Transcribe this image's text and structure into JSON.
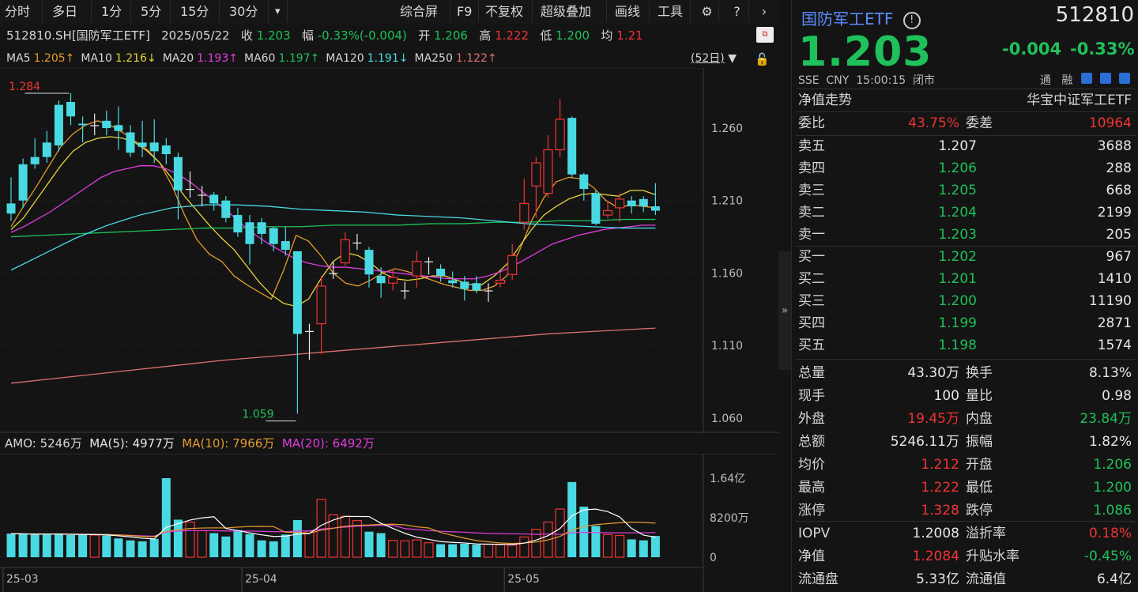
{
  "toolbar": {
    "left": [
      "分时",
      "多日",
      "1分",
      "5分",
      "15分",
      "30分"
    ],
    "dropdown": "▾",
    "right": [
      "综合屏",
      "F9",
      "不复权",
      "超级叠加",
      "画线",
      "工具"
    ]
  },
  "info": {
    "code": "512810.SH[国防军工ETF]",
    "date": "2025/05/22",
    "close_label": "收",
    "close": "1.203",
    "chg_label": "幅",
    "chg": "-0.33%(-0.004)",
    "open_label": "开",
    "open": "1.206",
    "high_label": "高",
    "high": "1.222",
    "low_label": "低",
    "low": "1.200",
    "avg_label": "均",
    "avg": "1.21"
  },
  "ma_line": {
    "items": [
      {
        "name": "MA5",
        "value": "1.205↑",
        "color": "#e59a2e"
      },
      {
        "name": "MA10",
        "value": "1.216↓",
        "color": "#e5d33a"
      },
      {
        "name": "MA20",
        "value": "1.193↑",
        "color": "#e23ce2"
      },
      {
        "name": "MA60",
        "value": "1.197↑",
        "color": "#1fc15a"
      },
      {
        "name": "MA120",
        "value": "1.191↓",
        "color": "#49d9e3"
      },
      {
        "name": "MA250",
        "value": "1.122↑",
        "color": "#e07070"
      }
    ],
    "period": "(52日)"
  },
  "price_axis": [
    "1.260",
    "1.210",
    "1.160",
    "1.110",
    "1.060"
  ],
  "chart_annot": {
    "max": "1.284",
    "min": "1.059"
  },
  "amo": {
    "label": "AMO: 5246万",
    "ma5": "MA(5): 4977万",
    "ma10": "MA(10): 7966万",
    "ma20": "MA(20): 6492万"
  },
  "vol_axis": [
    "1.64亿",
    "8200万",
    "0"
  ],
  "date_axis": [
    "25-03",
    "25-04",
    "25-05"
  ],
  "chart_data": {
    "type": "candlestick",
    "candles": [
      [
        1.208,
        1.201,
        1.226,
        1.196
      ],
      [
        1.235,
        1.21,
        1.239,
        1.205
      ],
      [
        1.24,
        1.235,
        1.253,
        1.232
      ],
      [
        1.25,
        1.24,
        1.258,
        1.236
      ],
      [
        1.276,
        1.248,
        1.279,
        1.244
      ],
      [
        1.278,
        1.268,
        1.284,
        1.262
      ],
      [
        1.263,
        1.262,
        1.268,
        1.25
      ],
      [
        1.262,
        1.262,
        1.27,
        1.255
      ],
      [
        1.265,
        1.26,
        1.272,
        1.255
      ],
      [
        1.262,
        1.258,
        1.275,
        1.245
      ],
      [
        1.257,
        1.243,
        1.262,
        1.24
      ],
      [
        1.25,
        1.247,
        1.265,
        1.24
      ],
      [
        1.25,
        1.244,
        1.266,
        1.236
      ],
      [
        1.248,
        1.242,
        1.253,
        1.235
      ],
      [
        1.24,
        1.217,
        1.243,
        1.197
      ],
      [
        1.218,
        1.218,
        1.23,
        1.212
      ],
      [
        1.214,
        1.214,
        1.22,
        1.206
      ],
      [
        1.214,
        1.208,
        1.216,
        1.203
      ],
      [
        1.21,
        1.198,
        1.213,
        1.195
      ],
      [
        1.2,
        1.188,
        1.205,
        1.185
      ],
      [
        1.195,
        1.18,
        1.2,
        1.166
      ],
      [
        1.195,
        1.187,
        1.198,
        1.18
      ],
      [
        1.191,
        1.18,
        1.192,
        1.175
      ],
      [
        1.182,
        1.176,
        1.192,
        1.172
      ],
      [
        1.175,
        1.118,
        1.175,
        1.063
      ],
      [
        1.12,
        1.12,
        1.125,
        1.1
      ],
      [
        1.125,
        1.151,
        1.158,
        1.104
      ],
      [
        1.16,
        1.16,
        1.168,
        1.156
      ],
      [
        1.167,
        1.183,
        1.188,
        1.165
      ],
      [
        1.181,
        1.181,
        1.187,
        1.176
      ],
      [
        1.176,
        1.159,
        1.178,
        1.15
      ],
      [
        1.158,
        1.153,
        1.164,
        1.143
      ],
      [
        1.153,
        1.157,
        1.162,
        1.148
      ],
      [
        1.148,
        1.148,
        1.154,
        1.142
      ],
      [
        1.158,
        1.168,
        1.175,
        1.15
      ],
      [
        1.168,
        1.168,
        1.171,
        1.159
      ],
      [
        1.163,
        1.158,
        1.166,
        1.154
      ],
      [
        1.155,
        1.153,
        1.161,
        1.15
      ],
      [
        1.154,
        1.149,
        1.158,
        1.141
      ],
      [
        1.153,
        1.148,
        1.158,
        1.146
      ],
      [
        1.148,
        1.148,
        1.153,
        1.14
      ],
      [
        1.153,
        1.155,
        1.161,
        1.15
      ],
      [
        1.159,
        1.172,
        1.18,
        1.155
      ],
      [
        1.195,
        1.208,
        1.225,
        1.19
      ],
      [
        1.22,
        1.236,
        1.24,
        1.198
      ],
      [
        1.215,
        1.245,
        1.255,
        1.212
      ],
      [
        1.245,
        1.266,
        1.28,
        1.24
      ],
      [
        1.267,
        1.228,
        1.268,
        1.226
      ],
      [
        1.228,
        1.218,
        1.229,
        1.21
      ],
      [
        1.215,
        1.194,
        1.217,
        1.193
      ],
      [
        1.2,
        1.203,
        1.21,
        1.198
      ],
      [
        1.205,
        1.211,
        1.215,
        1.195
      ],
      [
        1.21,
        1.206,
        1.213,
        1.201
      ],
      [
        1.211,
        1.206,
        1.213,
        1.202
      ],
      [
        1.206,
        1.203,
        1.222,
        1.2
      ]
    ],
    "volumes_wan": [
      4900,
      4800,
      4700,
      4900,
      4800,
      4600,
      4600,
      4600,
      4500,
      3900,
      3500,
      3300,
      3800,
      16400,
      7800,
      7300,
      5500,
      5000,
      4300,
      5600,
      4800,
      3500,
      3300,
      4700,
      7700,
      5400,
      12000,
      8800,
      8500,
      7600,
      5300,
      5000,
      3500,
      3400,
      3600,
      3000,
      2700,
      2700,
      2800,
      2600,
      2700,
      2600,
      2500,
      4200,
      5800,
      7300,
      10000,
      15600,
      10500,
      6500,
      4700,
      4500,
      3700,
      3500,
      4400
    ],
    "ma_lines": {
      "MA5": [
        1.192,
        1.206,
        1.219,
        1.233,
        1.247,
        1.256,
        1.262,
        1.265,
        1.262,
        1.257,
        1.251,
        1.245,
        1.236,
        1.22,
        1.2,
        1.183,
        1.173,
        1.168,
        1.158,
        1.152,
        1.147,
        1.142,
        1.162,
        1.186,
        1.182,
        1.172,
        1.16,
        1.153,
        1.151,
        1.155,
        1.16,
        1.163,
        1.161,
        1.158,
        1.155,
        1.152,
        1.15,
        1.148,
        1.148,
        1.151,
        1.158,
        1.175,
        1.196,
        1.212,
        1.223,
        1.226,
        1.225,
        1.219,
        1.21,
        1.205,
        1.207,
        1.206,
        1.205
      ],
      "MA10": [
        1.19,
        1.198,
        1.21,
        1.222,
        1.234,
        1.244,
        1.25,
        1.253,
        1.254,
        1.253,
        1.25,
        1.244,
        1.236,
        1.225,
        1.213,
        1.203,
        1.193,
        1.184,
        1.176,
        1.165,
        1.154,
        1.145,
        1.139,
        1.137,
        1.142,
        1.156,
        1.168,
        1.174,
        1.172,
        1.167,
        1.16,
        1.156,
        1.155,
        1.156,
        1.158,
        1.158,
        1.155,
        1.152,
        1.152,
        1.158,
        1.166,
        1.178,
        1.19,
        1.2,
        1.206,
        1.211,
        1.214,
        1.215,
        1.214,
        1.213,
        1.217,
        1.217,
        1.214
      ],
      "MA20": [
        1.188,
        1.192,
        1.197,
        1.202,
        1.208,
        1.214,
        1.22,
        1.226,
        1.23,
        1.232,
        1.234,
        1.234,
        1.232,
        1.228,
        1.222,
        1.215,
        1.208,
        1.201,
        1.193,
        1.186,
        1.18,
        1.175,
        1.17,
        1.167,
        1.165,
        1.164,
        1.164,
        1.163,
        1.162,
        1.161,
        1.16,
        1.159,
        1.158,
        1.157,
        1.156,
        1.156,
        1.156,
        1.158,
        1.161,
        1.165,
        1.17,
        1.175,
        1.18,
        1.183,
        1.186,
        1.188,
        1.19,
        1.191,
        1.192,
        1.193,
        1.193
      ],
      "MA60": [
        1.185,
        1.186,
        1.187,
        1.188,
        1.189,
        1.19,
        1.191,
        1.191,
        1.192,
        1.192,
        1.193,
        1.193,
        1.193,
        1.194,
        1.194,
        1.195,
        1.195,
        1.196,
        1.196,
        1.197,
        1.197
      ],
      "MA120": [
        1.162,
        1.173,
        1.184,
        1.193,
        1.2,
        1.205,
        1.207,
        1.207,
        1.206,
        1.204,
        1.203,
        1.202,
        1.2,
        1.199,
        1.198,
        1.196,
        1.194,
        1.193,
        1.192,
        1.191,
        1.191
      ],
      "MA250": [
        1.084,
        1.088,
        1.092,
        1.096,
        1.1,
        1.103,
        1.106,
        1.109,
        1.112,
        1.115,
        1.118,
        1.12,
        1.122
      ]
    }
  },
  "rp": {
    "name": "国防军工ETF",
    "code": "512810",
    "price": "1.203",
    "chg": "-0.004",
    "chg_pct": "-0.33%",
    "sub": [
      "SSE",
      "CNY",
      "15:00:15",
      "闭市"
    ],
    "sub_right": [
      "通",
      "融"
    ],
    "nav_trend": "净值走势",
    "index_name": "华宝中证军工ETF",
    "weibi_label": "委比",
    "weibi": "43.75%",
    "weicha_label": "委差",
    "weicha": "10964",
    "asks": [
      {
        "label": "卖五",
        "price": "1.207",
        "vol": "3688"
      },
      {
        "label": "卖四",
        "price": "1.206",
        "vol": "288"
      },
      {
        "label": "卖三",
        "price": "1.205",
        "vol": "668"
      },
      {
        "label": "卖二",
        "price": "1.204",
        "vol": "2199"
      },
      {
        "label": "卖一",
        "price": "1.203",
        "vol": "205"
      }
    ],
    "bids": [
      {
        "label": "买一",
        "price": "1.202",
        "vol": "967"
      },
      {
        "label": "买二",
        "price": "1.201",
        "vol": "1410"
      },
      {
        "label": "买三",
        "price": "1.200",
        "vol": "11190"
      },
      {
        "label": "买四",
        "price": "1.199",
        "vol": "2871"
      },
      {
        "label": "买五",
        "price": "1.198",
        "vol": "1574"
      }
    ],
    "stats": [
      {
        "l1": "总量",
        "v1": "43.30万",
        "c1": "white",
        "l2": "换手",
        "v2": "8.13%",
        "c2": "white"
      },
      {
        "l1": "现手",
        "v1": "100",
        "c1": "white",
        "l2": "量比",
        "v2": "0.98",
        "c2": "white"
      },
      {
        "l1": "外盘",
        "v1": "19.45万",
        "c1": "red",
        "l2": "内盘",
        "v2": "23.84万",
        "c2": "green"
      },
      {
        "l1": "总额",
        "v1": "5246.11万",
        "c1": "white",
        "l2": "振幅",
        "v2": "1.82%",
        "c2": "white"
      },
      {
        "l1": "均价",
        "v1": "1.212",
        "c1": "red",
        "l2": "开盘",
        "v2": "1.206",
        "c2": "green"
      },
      {
        "l1": "最高",
        "v1": "1.222",
        "c1": "red",
        "l2": "最低",
        "v2": "1.200",
        "c2": "green"
      },
      {
        "l1": "涨停",
        "v1": "1.328",
        "c1": "red",
        "l2": "跌停",
        "v2": "1.086",
        "c2": "green"
      }
    ],
    "stats2": [
      {
        "l1": "IOPV",
        "v1": "1.2008",
        "c1": "white",
        "l2": "溢折率",
        "v2": "0.18%",
        "c2": "red"
      },
      {
        "l1": "净值",
        "v1": "1.2084",
        "c1": "red",
        "l2": "升贴水率",
        "v2": "-0.45%",
        "c2": "green"
      },
      {
        "l1": "流通盘",
        "v1": "5.33亿",
        "c1": "white",
        "l2": "流通值",
        "v2": "6.4亿",
        "c2": "white"
      }
    ]
  }
}
